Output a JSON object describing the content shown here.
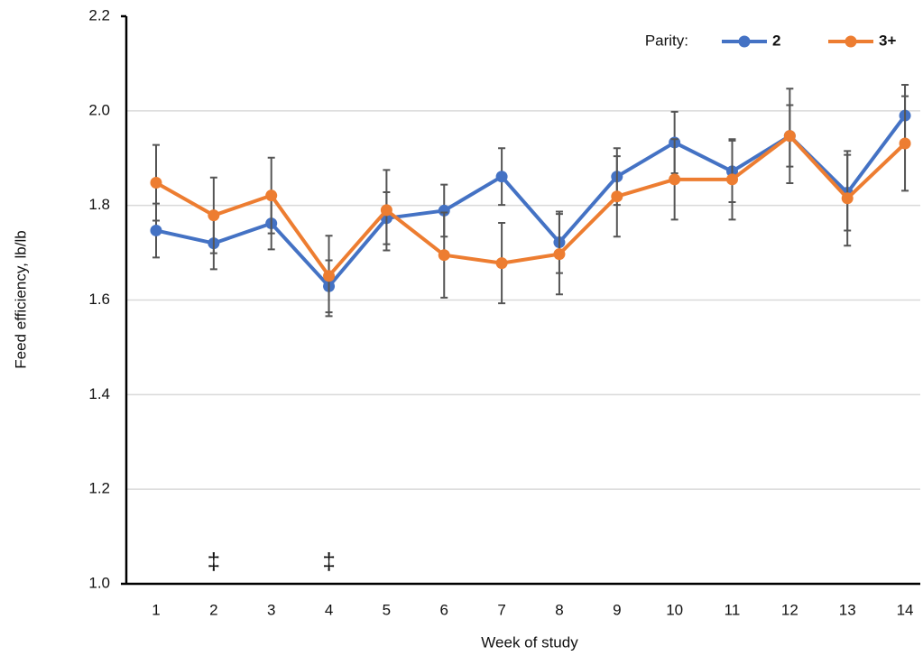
{
  "chart_data": {
    "type": "line",
    "xlabel": "Week of study",
    "ylabel": "Feed efficiency, lb/lb",
    "categories": [
      "1",
      "2",
      "3",
      "4",
      "5",
      "6",
      "7",
      "8",
      "9",
      "10",
      "11",
      "12",
      "13",
      "14"
    ],
    "ylim": [
      1.0,
      2.2
    ],
    "yticks": [
      {
        "value": 1.0,
        "label": "1.0"
      },
      1.2,
      1.4,
      1.6,
      1.8,
      {
        "value": 2.0,
        "label": "2.0"
      },
      2.2
    ],
    "grid": true,
    "legend_title": "Parity:",
    "legend": "top-right",
    "series": [
      {
        "name": "2",
        "color": "#4472c4",
        "values": [
          1.747,
          1.72,
          1.762,
          1.629,
          1.773,
          1.789,
          1.861,
          1.722,
          1.861,
          1.933,
          1.872,
          1.947,
          1.827,
          1.99
        ],
        "errors": [
          0.057,
          0.055,
          0.055,
          0.055,
          0.055,
          0.055,
          0.06,
          0.065,
          0.06,
          0.065,
          0.065,
          0.065,
          0.08,
          0.065
        ]
      },
      {
        "name": "3+",
        "color": "#ed7d31",
        "values": [
          1.848,
          1.779,
          1.821,
          1.651,
          1.79,
          1.695,
          1.678,
          1.697,
          1.819,
          1.855,
          1.855,
          1.947,
          1.815,
          1.931
        ],
        "errors": [
          0.08,
          0.08,
          0.08,
          0.085,
          0.085,
          0.09,
          0.085,
          0.085,
          0.085,
          0.085,
          0.085,
          0.1,
          0.1,
          0.1
        ]
      }
    ],
    "annotations": [
      {
        "x": "2",
        "text": "‡"
      },
      {
        "x": "4",
        "text": "‡"
      }
    ]
  }
}
